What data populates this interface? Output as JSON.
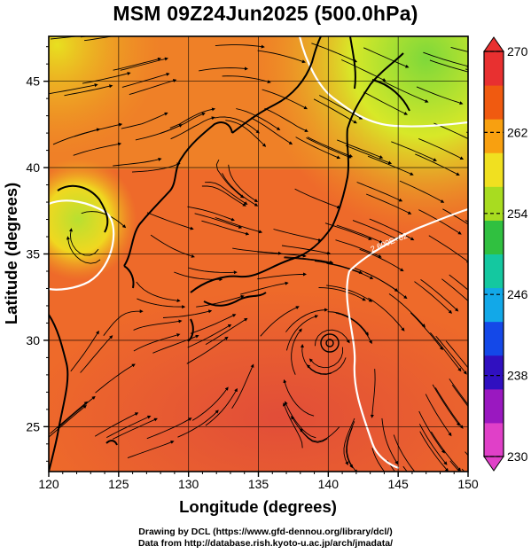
{
  "title": "MSM 09Z24Jun2025 (500.0hPa)",
  "map": {
    "xlabel": "Longitude (degrees)",
    "ylabel": "Latitude  (degrees)",
    "x_ticks": [
      "120",
      "125",
      "130",
      "135",
      "140",
      "145",
      "150"
    ],
    "y_ticks": [
      "25",
      "30",
      "35",
      "40",
      "45"
    ],
    "lon_range": [
      120,
      150
    ],
    "lat_range": [
      22.4,
      47.6
    ],
    "gridlines": true,
    "field": "temperature (K) with wind streamlines",
    "contour_label": "2.600E+02"
  },
  "colorbar": {
    "tick_labels": [
      "270",
      "262",
      "254",
      "246",
      "238",
      "230"
    ],
    "min": 230,
    "max": 270,
    "colors": [
      "#e040c8",
      "#9a18c0",
      "#3010c0",
      "#1448e8",
      "#12a8e8",
      "#14c8a0",
      "#30c040",
      "#a8dc20",
      "#f0e020",
      "#f8a010",
      "#f05a10",
      "#e83030"
    ]
  },
  "credits": [
    "Drawing by DCL (https://www.gfd-dennou.org/library/dcl/)",
    "Data from http://database.rish.kyoto-u.ac.jp/arch/jmadata/"
  ]
}
